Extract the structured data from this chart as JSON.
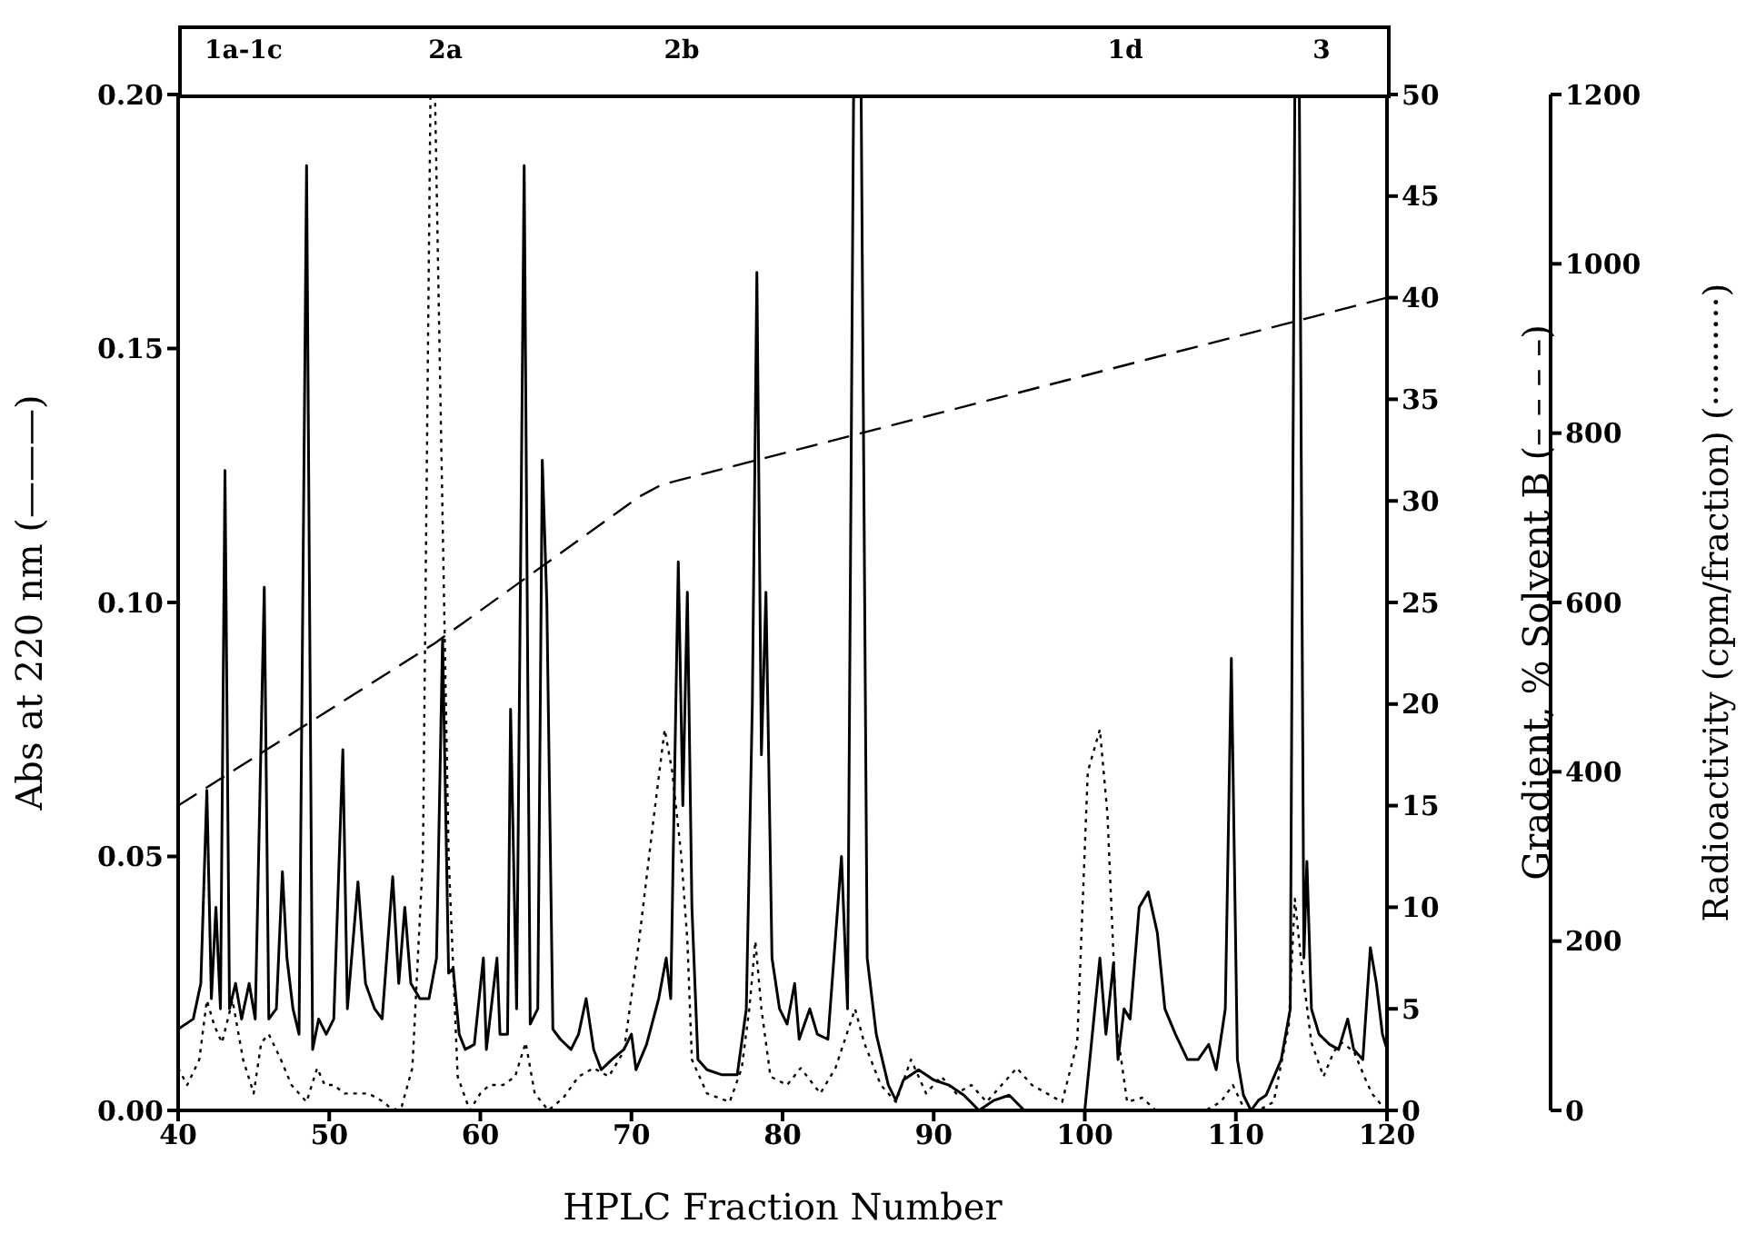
{
  "chart_data": {
    "type": "line",
    "xlabel": "HPLC Fraction Number",
    "ylabel": "Abs at 220 nm (———)",
    "y2label": "Gradient, % Solvent B (– – – –)",
    "y3label": "Radioactivity (cpm/fraction) (··········)",
    "marker": "none",
    "xlim": [
      40,
      120
    ],
    "xticks": [
      40,
      50,
      60,
      70,
      80,
      90,
      100,
      110,
      120
    ],
    "ylim": [
      0,
      0.2
    ],
    "yticks": [
      {
        "value": 0,
        "label": "0.00"
      },
      {
        "value": 0.05,
        "label": "0.05"
      },
      {
        "value": 0.1,
        "label": "0.10"
      },
      {
        "value": 0.15,
        "label": "0.15"
      },
      {
        "value": 0.2,
        "label": "0.20"
      }
    ],
    "y2lim": [
      0,
      50
    ],
    "y2ticks": [
      0,
      5,
      10,
      15,
      20,
      25,
      30,
      35,
      40,
      45,
      50
    ],
    "y3lim": [
      0,
      1200
    ],
    "y3ticks": [
      0,
      200,
      400,
      600,
      800,
      1000,
      1200
    ],
    "annotations": [
      "1a-1c",
      "2a",
      "2b",
      "1d",
      "3"
    ],
    "series": [
      {
        "color": "#000000",
        "line_style": "solid",
        "x": [
          40,
          41,
          41.5,
          41.9,
          42.2,
          42.5,
          42.8,
          43.1,
          43.4,
          43.8,
          44.2,
          44.7,
          45.1,
          45.7,
          46,
          46.5,
          46.9,
          47.2,
          47.6,
          48,
          48.5,
          48.9,
          49.3,
          49.8,
          50.3,
          50.9,
          51.2,
          51.9,
          52.4,
          53,
          53.5,
          54.2,
          54.6,
          55,
          55.4,
          56,
          56.6,
          57.1,
          57.5,
          57.9,
          58.2,
          58.6,
          59,
          59.6,
          60.2,
          60.4,
          61.1,
          61.3,
          61.8,
          62,
          62.4,
          62.9,
          63.3,
          63.8,
          64.1,
          64.4,
          64.8,
          65.3,
          66,
          66.5,
          67,
          67.5,
          68,
          68.7,
          69.5,
          70,
          70.3,
          71,
          71.8,
          72.3,
          72.6,
          73.1,
          73.4,
          73.7,
          74,
          74.4,
          75,
          76,
          77,
          77.6,
          78,
          78.3,
          78.6,
          78.9,
          79.3,
          79.8,
          80.3,
          80.8,
          81.1,
          81.8,
          82.3,
          83,
          83.9,
          84.3,
          84.7,
          85.2,
          85.6,
          86.2,
          87,
          87.5,
          88,
          89,
          90,
          91,
          92,
          93,
          94,
          95,
          96,
          97,
          99,
          100,
          100.5,
          101,
          101.4,
          101.9,
          102.2,
          102.6,
          103,
          103.6,
          104.2,
          104.8,
          105.3,
          106,
          106.8,
          107.5,
          108.2,
          108.7,
          109.3,
          109.7,
          110.1,
          110.5,
          111,
          111.5,
          112,
          113,
          113.6,
          113.9,
          114.2,
          114.5,
          114.7,
          115,
          115.5,
          116.2,
          116.8,
          117.4,
          117.8,
          118.4,
          118.9,
          119.3,
          119.7,
          120
        ],
        "values": [
          0.016,
          0.018,
          0.025,
          0.063,
          0.022,
          0.04,
          0.02,
          0.126,
          0.02,
          0.025,
          0.018,
          0.025,
          0.018,
          0.103,
          0.018,
          0.02,
          0.047,
          0.03,
          0.02,
          0.015,
          0.186,
          0.012,
          0.018,
          0.015,
          0.018,
          0.071,
          0.02,
          0.045,
          0.025,
          0.02,
          0.018,
          0.046,
          0.025,
          0.04,
          0.025,
          0.022,
          0.022,
          0.03,
          0.093,
          0.027,
          0.028,
          0.015,
          0.012,
          0.013,
          0.03,
          0.012,
          0.03,
          0.015,
          0.015,
          0.079,
          0.02,
          0.186,
          0.017,
          0.02,
          0.128,
          0.1,
          0.016,
          0.014,
          0.012,
          0.015,
          0.022,
          0.012,
          0.008,
          0.01,
          0.012,
          0.015,
          0.008,
          0.013,
          0.022,
          0.03,
          0.022,
          0.108,
          0.06,
          0.102,
          0.04,
          0.01,
          0.008,
          0.007,
          0.007,
          0.02,
          0.08,
          0.165,
          0.07,
          0.102,
          0.03,
          0.02,
          0.017,
          0.025,
          0.014,
          0.02,
          0.015,
          0.014,
          0.05,
          0.02,
          0.2,
          0.2,
          0.03,
          0.015,
          0.005,
          0.002,
          0.006,
          0.008,
          0.006,
          0.005,
          0.003,
          0,
          0.002,
          0.003,
          0,
          0,
          0,
          0,
          0.015,
          0.03,
          0.015,
          0.029,
          0.01,
          0.02,
          0.018,
          0.04,
          0.043,
          0.035,
          0.02,
          0.015,
          0.01,
          0.01,
          0.013,
          0.008,
          0.02,
          0.089,
          0.01,
          0.003,
          0,
          0.002,
          0.003,
          0.01,
          0.02,
          0.2,
          0.2,
          0.03,
          0.049,
          0.02,
          0.015,
          0.013,
          0.012,
          0.018,
          0.012,
          0.01,
          0.032,
          0.025,
          0.015,
          0.012
        ]
      },
      {
        "axis": "y2",
        "color": "#000000",
        "line_style": "dashed",
        "x": [
          40,
          57,
          70.5,
          72,
          120
        ],
        "values": [
          15,
          23,
          30.2,
          30.8,
          40
        ]
      },
      {
        "axis": "y3",
        "color": "#000000",
        "line_style": "dotted",
        "x": [
          40,
          40.6,
          41.4,
          41.9,
          42.4,
          42.9,
          43.6,
          44.3,
          45,
          45.5,
          46,
          46.8,
          47.5,
          48.5,
          49.2,
          49.7,
          50.3,
          51,
          51.8,
          52.6,
          53.6,
          54.2,
          54.8,
          55.5,
          56.2,
          56.7,
          57,
          57.4,
          57.9,
          58.5,
          59.3,
          60,
          60.6,
          61.5,
          62.3,
          63,
          63.6,
          64.5,
          65.5,
          66.5,
          67.5,
          68.5,
          69.5,
          70.5,
          71.5,
          72.2,
          72.7,
          73.3,
          73.7,
          74,
          75,
          76.5,
          77.3,
          77.8,
          78.2,
          78.6,
          79.2,
          80.3,
          81.2,
          82.5,
          83.5,
          84.8,
          85.4,
          86.5,
          87.5,
          88.5,
          89.5,
          90.5,
          91.5,
          92.5,
          93.5,
          94.5,
          95.5,
          96.5,
          97.5,
          98.5,
          99.5,
          100.2,
          101,
          101.5,
          102.1,
          102.8,
          103.8,
          104.7,
          105.5,
          106.5,
          108,
          109,
          109.8,
          110.6,
          111.5,
          112.5,
          113.5,
          113.9,
          114.3,
          115,
          115.8,
          116.5,
          117,
          117.8,
          118.5,
          119,
          119.7
        ],
        "values": [
          50,
          30,
          60,
          130,
          100,
          80,
          130,
          60,
          20,
          80,
          90,
          60,
          30,
          10,
          50,
          30,
          30,
          20,
          20,
          20,
          10,
          0,
          5,
          50,
          300,
          1200,
          1200,
          800,
          300,
          40,
          0,
          20,
          30,
          30,
          40,
          80,
          20,
          0,
          15,
          40,
          50,
          40,
          70,
          200,
          350,
          450,
          400,
          300,
          200,
          60,
          20,
          10,
          50,
          120,
          200,
          120,
          40,
          30,
          50,
          20,
          50,
          120,
          80,
          30,
          10,
          60,
          20,
          40,
          20,
          30,
          10,
          30,
          50,
          30,
          20,
          10,
          80,
          400,
          450,
          350,
          100,
          10,
          15,
          0,
          0,
          0,
          0,
          10,
          30,
          0,
          0,
          10,
          100,
          250,
          180,
          80,
          40,
          70,
          80,
          70,
          40,
          20,
          5
        ]
      }
    ]
  }
}
